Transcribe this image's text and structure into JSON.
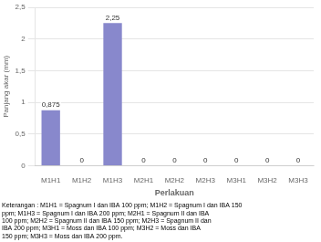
{
  "chart_data": {
    "type": "bar",
    "categories": [
      "M1H1",
      "M1H2",
      "M1H3",
      "M2H1",
      "M2H2",
      "M2H3",
      "M3H1",
      "M3H2",
      "M3H3"
    ],
    "values": [
      0.875,
      0,
      2.25,
      0,
      0,
      0,
      0,
      0,
      0
    ],
    "value_labels": [
      "0,875",
      "0",
      "2,25",
      "0",
      "0",
      "0",
      "0",
      "0",
      "0"
    ],
    "data_labels": true,
    "color": "#8888cc",
    "ylabel": "Panjang akar (mm)",
    "xlabel": "Perlakuan",
    "ylim": [
      0,
      2.5
    ],
    "yticks": [
      0,
      {
        "value": 0.5,
        "label": "0,5"
      },
      1,
      {
        "value": 1.5,
        "label": "1,5"
      },
      2,
      {
        "value": 2.5,
        "label": "2,5"
      }
    ],
    "grid": true,
    "caption": [
      "Keterangan : M1H1 = Spagnum I dan IBA 100 ppm; M1H2 = Spagnum I dan IBA 150",
      "ppm; M1H3 = Spagnum I dan IBA 200 ppm; M2H1 = Spagnum II dan IBA",
      "100 ppm; M2H2 = Spagnum II dan IBA 150 ppm; M2H3 = Spagnum II dan",
      "IBA 200 ppm; M3H1 = Moss dan IBA 100 ppm; M3H2 = Moss dan IBA",
      "150 ppm; M3H3 = Moss dan IBA 200 ppm."
    ]
  }
}
